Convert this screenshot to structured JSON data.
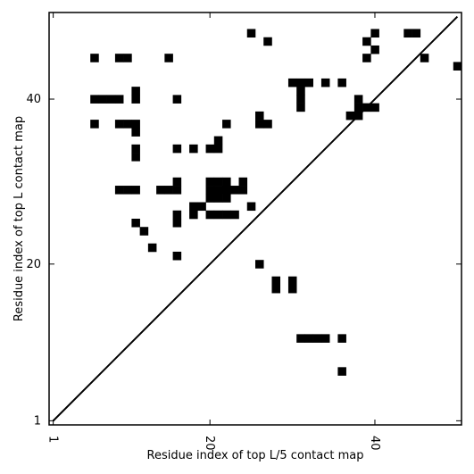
{
  "chart_data": {
    "type": "heatmap",
    "title": "",
    "xlabel": "Residue index of top L/5 contact map",
    "ylabel": "Residue index of top L contact map",
    "xlim": [
      0.5,
      50.5
    ],
    "ylim": [
      0.5,
      50.5
    ],
    "xticks": [
      1,
      20,
      40
    ],
    "yticks": [
      1,
      20,
      40
    ],
    "grid": false,
    "legend": "none",
    "colors": {
      "contact": "#000000",
      "background": "#ffffff",
      "diagonal": "#000000"
    },
    "diagonal": [
      [
        1,
        1
      ],
      [
        50,
        50
      ]
    ],
    "upper_contacts": [
      [
        18,
        27
      ],
      [
        19,
        27
      ],
      [
        20,
        28
      ],
      [
        21,
        28
      ],
      [
        22,
        28
      ],
      [
        22,
        29
      ],
      [
        23,
        29
      ],
      [
        21,
        35
      ],
      [
        22,
        37
      ],
      [
        26,
        37
      ],
      [
        27,
        37
      ],
      [
        26,
        38
      ],
      [
        31,
        39
      ],
      [
        31,
        40
      ],
      [
        31,
        41
      ],
      [
        31,
        42
      ],
      [
        30,
        42
      ],
      [
        32,
        42
      ],
      [
        34,
        42
      ],
      [
        36,
        42
      ],
      [
        25,
        48
      ],
      [
        27,
        47
      ],
      [
        39,
        45
      ],
      [
        39,
        47
      ],
      [
        40,
        46
      ],
      [
        40,
        48
      ],
      [
        44,
        48
      ],
      [
        45,
        48
      ],
      [
        50,
        44
      ],
      [
        46,
        45
      ]
    ],
    "lower_contacts": [
      [
        6,
        37
      ],
      [
        6,
        40
      ],
      [
        6,
        45
      ],
      [
        7,
        40
      ],
      [
        8,
        40
      ],
      [
        9,
        37
      ],
      [
        9,
        40
      ],
      [
        9,
        45
      ],
      [
        9,
        29
      ],
      [
        10,
        29
      ],
      [
        10,
        45
      ],
      [
        10,
        37
      ],
      [
        11,
        29
      ],
      [
        11,
        33
      ],
      [
        11,
        34
      ],
      [
        11,
        36
      ],
      [
        11,
        37
      ],
      [
        11,
        41
      ],
      [
        11,
        40
      ],
      [
        11,
        25
      ],
      [
        12,
        24
      ],
      [
        13,
        22
      ],
      [
        14,
        29
      ],
      [
        15,
        29
      ],
      [
        15,
        45
      ],
      [
        16,
        40
      ],
      [
        16,
        34
      ],
      [
        16,
        30
      ],
      [
        16,
        29
      ],
      [
        16,
        26
      ],
      [
        16,
        25
      ],
      [
        16,
        21
      ],
      [
        18,
        26
      ],
      [
        18,
        34
      ],
      [
        20,
        34
      ],
      [
        21,
        34
      ],
      [
        20,
        30
      ],
      [
        21,
        30
      ],
      [
        22,
        30
      ],
      [
        20,
        29
      ],
      [
        21,
        29
      ],
      [
        22,
        29
      ],
      [
        20,
        26
      ],
      [
        21,
        26
      ],
      [
        22,
        26
      ],
      [
        23,
        26
      ],
      [
        24,
        30
      ],
      [
        24,
        29
      ],
      [
        25,
        27
      ],
      [
        26,
        20
      ],
      [
        28,
        17
      ],
      [
        28,
        18
      ],
      [
        30,
        18
      ],
      [
        30,
        17
      ],
      [
        31,
        11
      ],
      [
        32,
        11
      ],
      [
        33,
        11
      ],
      [
        34,
        11
      ],
      [
        36,
        7
      ],
      [
        36,
        11
      ],
      [
        37,
        38
      ],
      [
        38,
        38
      ],
      [
        38,
        39
      ],
      [
        38,
        40
      ],
      [
        39,
        39
      ],
      [
        40,
        39
      ]
    ]
  }
}
